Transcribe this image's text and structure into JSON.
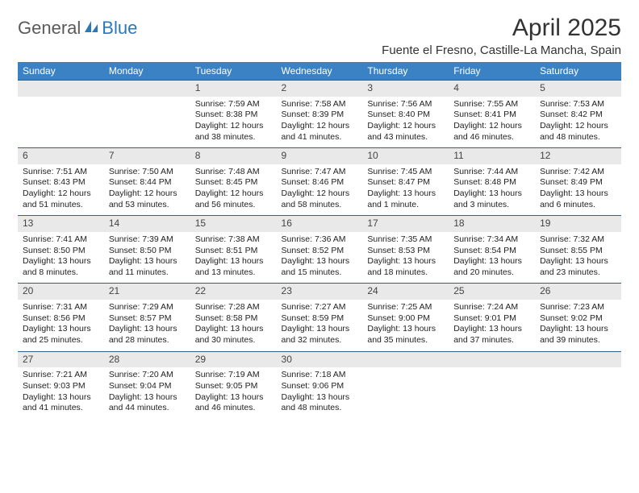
{
  "logo": {
    "part1": "General",
    "part2": "Blue"
  },
  "title": "April 2025",
  "subtitle": "Fuente el Fresno, Castille-La Mancha, Spain",
  "colors": {
    "header_bg": "#3a82c4",
    "header_text": "#ffffff",
    "daynum_bg": "#e9e9e9",
    "daynum_border_top": "#2d5f8f",
    "body_text": "#222222",
    "logo_gray": "#5a5a5a",
    "logo_blue": "#2d79b8",
    "page_bg": "#ffffff"
  },
  "typography": {
    "title_fontsize": 30,
    "subtitle_fontsize": 15,
    "header_fontsize": 12,
    "cell_fontsize": 10.5,
    "font_family": "Arial"
  },
  "columns": [
    "Sunday",
    "Monday",
    "Tuesday",
    "Wednesday",
    "Thursday",
    "Friday",
    "Saturday"
  ],
  "weeks": [
    [
      {
        "day": "",
        "text": ""
      },
      {
        "day": "",
        "text": ""
      },
      {
        "day": "1",
        "sunrise": "Sunrise: 7:59 AM",
        "sunset": "Sunset: 8:38 PM",
        "daylight": "Daylight: 12 hours and 38 minutes."
      },
      {
        "day": "2",
        "sunrise": "Sunrise: 7:58 AM",
        "sunset": "Sunset: 8:39 PM",
        "daylight": "Daylight: 12 hours and 41 minutes."
      },
      {
        "day": "3",
        "sunrise": "Sunrise: 7:56 AM",
        "sunset": "Sunset: 8:40 PM",
        "daylight": "Daylight: 12 hours and 43 minutes."
      },
      {
        "day": "4",
        "sunrise": "Sunrise: 7:55 AM",
        "sunset": "Sunset: 8:41 PM",
        "daylight": "Daylight: 12 hours and 46 minutes."
      },
      {
        "day": "5",
        "sunrise": "Sunrise: 7:53 AM",
        "sunset": "Sunset: 8:42 PM",
        "daylight": "Daylight: 12 hours and 48 minutes."
      }
    ],
    [
      {
        "day": "6",
        "sunrise": "Sunrise: 7:51 AM",
        "sunset": "Sunset: 8:43 PM",
        "daylight": "Daylight: 12 hours and 51 minutes."
      },
      {
        "day": "7",
        "sunrise": "Sunrise: 7:50 AM",
        "sunset": "Sunset: 8:44 PM",
        "daylight": "Daylight: 12 hours and 53 minutes."
      },
      {
        "day": "8",
        "sunrise": "Sunrise: 7:48 AM",
        "sunset": "Sunset: 8:45 PM",
        "daylight": "Daylight: 12 hours and 56 minutes."
      },
      {
        "day": "9",
        "sunrise": "Sunrise: 7:47 AM",
        "sunset": "Sunset: 8:46 PM",
        "daylight": "Daylight: 12 hours and 58 minutes."
      },
      {
        "day": "10",
        "sunrise": "Sunrise: 7:45 AM",
        "sunset": "Sunset: 8:47 PM",
        "daylight": "Daylight: 13 hours and 1 minute."
      },
      {
        "day": "11",
        "sunrise": "Sunrise: 7:44 AM",
        "sunset": "Sunset: 8:48 PM",
        "daylight": "Daylight: 13 hours and 3 minutes."
      },
      {
        "day": "12",
        "sunrise": "Sunrise: 7:42 AM",
        "sunset": "Sunset: 8:49 PM",
        "daylight": "Daylight: 13 hours and 6 minutes."
      }
    ],
    [
      {
        "day": "13",
        "sunrise": "Sunrise: 7:41 AM",
        "sunset": "Sunset: 8:50 PM",
        "daylight": "Daylight: 13 hours and 8 minutes."
      },
      {
        "day": "14",
        "sunrise": "Sunrise: 7:39 AM",
        "sunset": "Sunset: 8:50 PM",
        "daylight": "Daylight: 13 hours and 11 minutes."
      },
      {
        "day": "15",
        "sunrise": "Sunrise: 7:38 AM",
        "sunset": "Sunset: 8:51 PM",
        "daylight": "Daylight: 13 hours and 13 minutes."
      },
      {
        "day": "16",
        "sunrise": "Sunrise: 7:36 AM",
        "sunset": "Sunset: 8:52 PM",
        "daylight": "Daylight: 13 hours and 15 minutes."
      },
      {
        "day": "17",
        "sunrise": "Sunrise: 7:35 AM",
        "sunset": "Sunset: 8:53 PM",
        "daylight": "Daylight: 13 hours and 18 minutes."
      },
      {
        "day": "18",
        "sunrise": "Sunrise: 7:34 AM",
        "sunset": "Sunset: 8:54 PM",
        "daylight": "Daylight: 13 hours and 20 minutes."
      },
      {
        "day": "19",
        "sunrise": "Sunrise: 7:32 AM",
        "sunset": "Sunset: 8:55 PM",
        "daylight": "Daylight: 13 hours and 23 minutes."
      }
    ],
    [
      {
        "day": "20",
        "sunrise": "Sunrise: 7:31 AM",
        "sunset": "Sunset: 8:56 PM",
        "daylight": "Daylight: 13 hours and 25 minutes."
      },
      {
        "day": "21",
        "sunrise": "Sunrise: 7:29 AM",
        "sunset": "Sunset: 8:57 PM",
        "daylight": "Daylight: 13 hours and 28 minutes."
      },
      {
        "day": "22",
        "sunrise": "Sunrise: 7:28 AM",
        "sunset": "Sunset: 8:58 PM",
        "daylight": "Daylight: 13 hours and 30 minutes."
      },
      {
        "day": "23",
        "sunrise": "Sunrise: 7:27 AM",
        "sunset": "Sunset: 8:59 PM",
        "daylight": "Daylight: 13 hours and 32 minutes."
      },
      {
        "day": "24",
        "sunrise": "Sunrise: 7:25 AM",
        "sunset": "Sunset: 9:00 PM",
        "daylight": "Daylight: 13 hours and 35 minutes."
      },
      {
        "day": "25",
        "sunrise": "Sunrise: 7:24 AM",
        "sunset": "Sunset: 9:01 PM",
        "daylight": "Daylight: 13 hours and 37 minutes."
      },
      {
        "day": "26",
        "sunrise": "Sunrise: 7:23 AM",
        "sunset": "Sunset: 9:02 PM",
        "daylight": "Daylight: 13 hours and 39 minutes."
      }
    ],
    [
      {
        "day": "27",
        "sunrise": "Sunrise: 7:21 AM",
        "sunset": "Sunset: 9:03 PM",
        "daylight": "Daylight: 13 hours and 41 minutes."
      },
      {
        "day": "28",
        "sunrise": "Sunrise: 7:20 AM",
        "sunset": "Sunset: 9:04 PM",
        "daylight": "Daylight: 13 hours and 44 minutes."
      },
      {
        "day": "29",
        "sunrise": "Sunrise: 7:19 AM",
        "sunset": "Sunset: 9:05 PM",
        "daylight": "Daylight: 13 hours and 46 minutes."
      },
      {
        "day": "30",
        "sunrise": "Sunrise: 7:18 AM",
        "sunset": "Sunset: 9:06 PM",
        "daylight": "Daylight: 13 hours and 48 minutes."
      },
      {
        "day": "",
        "text": ""
      },
      {
        "day": "",
        "text": ""
      },
      {
        "day": "",
        "text": ""
      }
    ]
  ]
}
